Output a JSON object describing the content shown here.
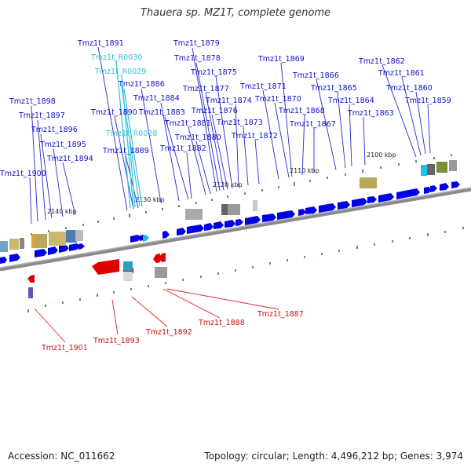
{
  "title": "Thauera sp. MZ1T, complete genome",
  "accession": "Accession: NC_011662",
  "summary": "Topology: circular; Length: 4,496,212 bp; Genes: 3,974",
  "colors": {
    "forward_gene": "#0000e0",
    "reverse_gene": "#e00000",
    "rna_gene": "#22b8e0",
    "forward_label": "#0000cc",
    "reverse_label": "#cc0000",
    "rna_label": "#33c0dd",
    "backbone": "#888888",
    "tick": "#227722"
  },
  "scale": [
    "2140 kbp",
    "2130 kbp",
    "2120 kbp",
    "2110 kbp",
    "2100 kbp"
  ],
  "forward_labels": [
    "Tmz1t_1900",
    "Tmz1t_1898",
    "Tmz1t_1897",
    "Tmz1t_1896",
    "Tmz1t_1895",
    "Tmz1t_1894",
    "Tmz1t_1891",
    "Tmz1t_1890",
    "Tmz1t_1889",
    "Tmz1t_1886",
    "Tmz1t_1884",
    "Tmz1t_1883",
    "Tmz1t_1882",
    "Tmz1t_1881",
    "Tmz1t_1880",
    "Tmz1t_1879",
    "Tmz1t_1878",
    "Tmz1t_1877",
    "Tmz1t_1876",
    "Tmz1t_1875",
    "Tmz1t_1874",
    "Tmz1t_1873",
    "Tmz1t_1872",
    "Tmz1t_1871",
    "Tmz1t_1870",
    "Tmz1t_1869",
    "Tmz1t_1868",
    "Tmz1t_1867",
    "Tmz1t_1866",
    "Tmz1t_1865",
    "Tmz1t_1864",
    "Tmz1t_1863",
    "Tmz1t_1862",
    "Tmz1t_1861",
    "Tmz1t_1860",
    "Tmz1t_1859"
  ],
  "rna_labels": [
    "Tmz1t_R0030",
    "Tmz1t_R0029",
    "Tmz1t_R0028"
  ],
  "reverse_labels": [
    "Tmz1t_1901",
    "Tmz1t_1893",
    "Tmz1t_1892",
    "Tmz1t_1888",
    "Tmz1t_1887"
  ]
}
